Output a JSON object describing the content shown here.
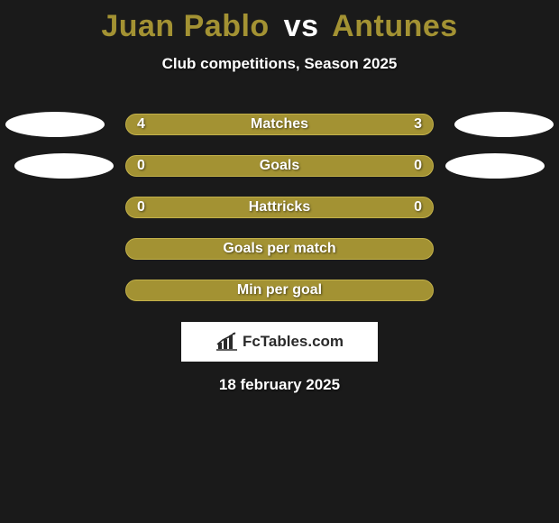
{
  "title": {
    "player1": "Juan Pablo",
    "vs": "vs",
    "player2": "Antunes"
  },
  "subtitle": "Club competitions, Season 2025",
  "colors": {
    "player1_accent": "#a39233",
    "player2_accent": "#a39233",
    "bar_fill": "#a39233",
    "bar_border": "#c3b14a",
    "ellipse": "#ffffff",
    "text": "#ffffff",
    "background": "#1a1a1a"
  },
  "rows": [
    {
      "label": "Matches",
      "left": "4",
      "right": "3",
      "show_left_ellipse": true,
      "show_right_ellipse": true,
      "show_left_val": true,
      "show_right_val": true
    },
    {
      "label": "Goals",
      "left": "0",
      "right": "0",
      "show_left_ellipse": true,
      "show_right_ellipse": true,
      "show_left_val": true,
      "show_right_val": true
    },
    {
      "label": "Hattricks",
      "left": "0",
      "right": "0",
      "show_left_ellipse": false,
      "show_right_ellipse": false,
      "show_left_val": true,
      "show_right_val": true
    },
    {
      "label": "Goals per match",
      "left": "",
      "right": "",
      "show_left_ellipse": false,
      "show_right_ellipse": false,
      "show_left_val": false,
      "show_right_val": false
    },
    {
      "label": "Min per goal",
      "left": "",
      "right": "",
      "show_left_ellipse": false,
      "show_right_ellipse": false,
      "show_left_val": false,
      "show_right_val": false
    }
  ],
  "ellipse_left_offsets": [
    6,
    16,
    0,
    0,
    0
  ],
  "ellipse_right_offsets": [
    6,
    16,
    0,
    0,
    0
  ],
  "brand": "FcTables.com",
  "date": "18 february 2025"
}
